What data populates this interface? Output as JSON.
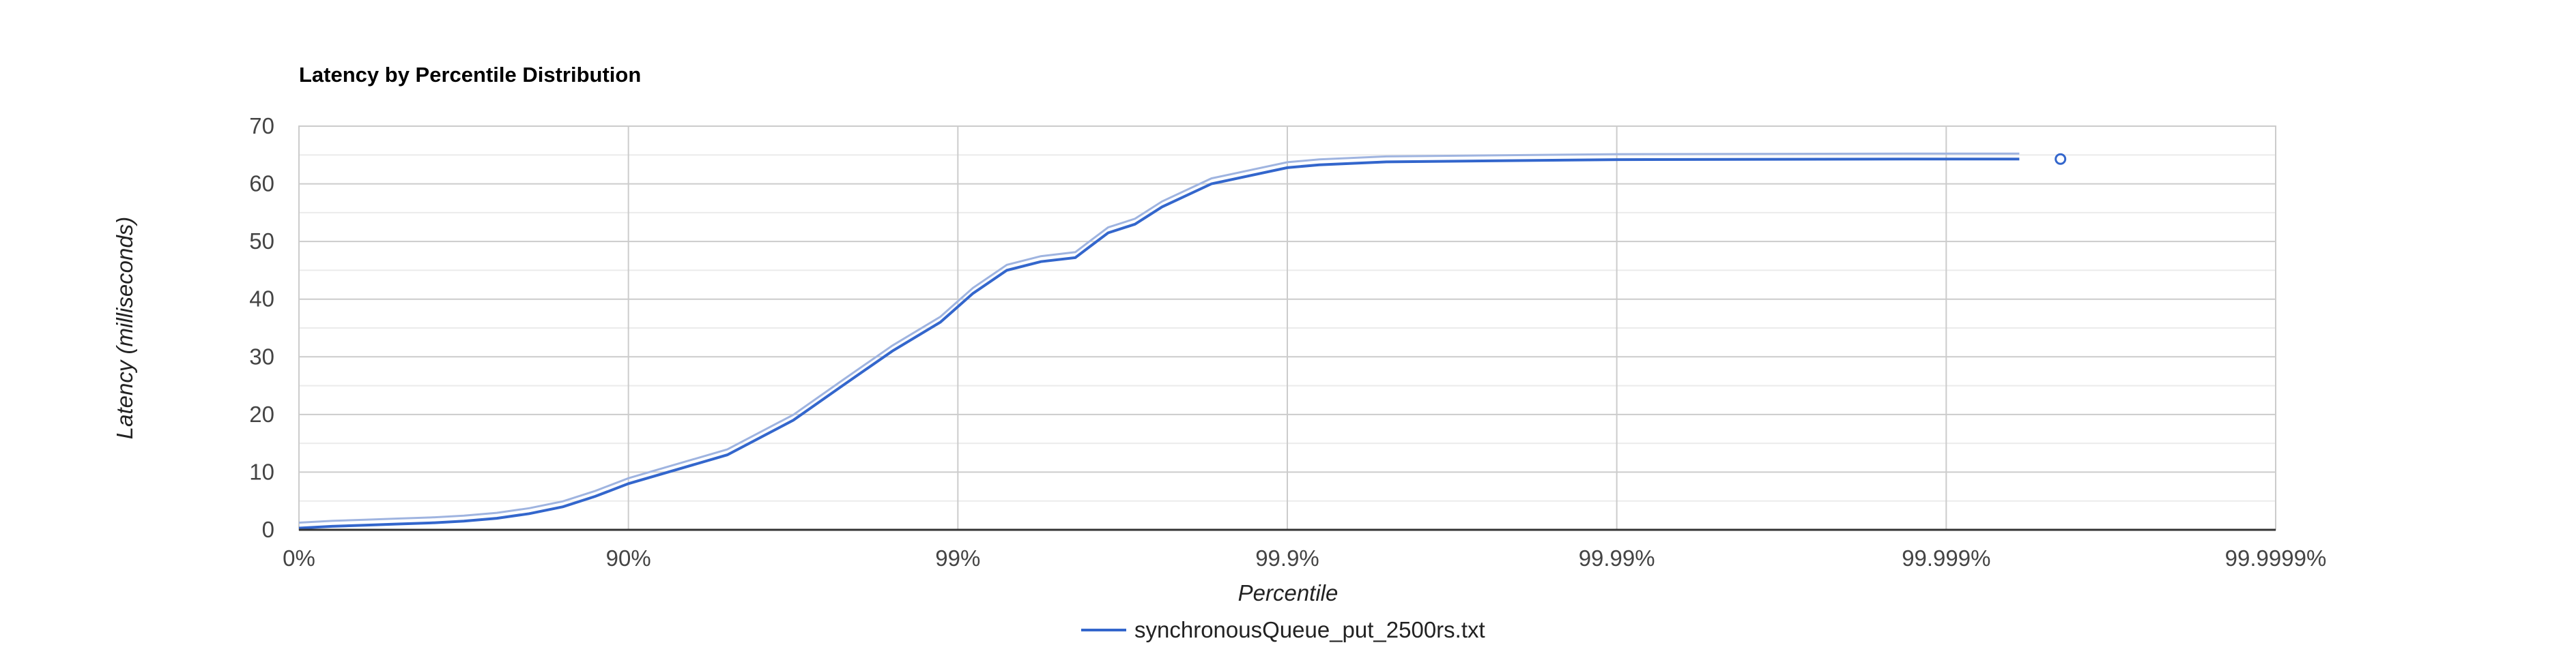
{
  "chart_data": {
    "type": "line",
    "title": "Latency by Percentile Distribution",
    "xlabel": "Percentile",
    "ylabel": "Latency (milliseconds)",
    "x_scale": "log-percentile",
    "x_ticks": [
      "0%",
      "90%",
      "99%",
      "99.9%",
      "99.99%",
      "99.999%",
      "99.9999%"
    ],
    "y_ticks": [
      "0",
      "10",
      "20",
      "30",
      "40",
      "50",
      "60",
      "70"
    ],
    "ylim": [
      0,
      70
    ],
    "grid": true,
    "legend": "bottom",
    "colors": {
      "series": "#3366cc",
      "series_shadow": "#9fb4e0",
      "grid": "#cccccc",
      "minor_grid": "#ebebeb",
      "axis": "#333333"
    },
    "series": [
      {
        "name": "synchronousQueue_put_2500rs.txt",
        "points": [
          {
            "x": "0%",
            "y": 0.3
          },
          {
            "x": "20.6%",
            "y": 0.6
          },
          {
            "x": "36.9%",
            "y": 0.8
          },
          {
            "x": "49.9%",
            "y": 1.0
          },
          {
            "x": "60.2%",
            "y": 1.2
          },
          {
            "x": "68.4%",
            "y": 1.5
          },
          {
            "x": "74.9%",
            "y": 2.0
          },
          {
            "x": "80.0%",
            "y": 2.8
          },
          {
            "x": "84.2%",
            "y": 4.0
          },
          {
            "x": "87.4%",
            "y": 5.8
          },
          {
            "x": "90%",
            "y": 8.0
          },
          {
            "x": "94.99%",
            "y": 13.0
          },
          {
            "x": "96.84%",
            "y": 19.0
          },
          {
            "x": "97.76%",
            "y": 25.0
          },
          {
            "x": "98.42%",
            "y": 31.0
          },
          {
            "x": "98.87%",
            "y": 36.0
          },
          {
            "x": "99.1%",
            "y": 41.0
          },
          {
            "x": "99.29%",
            "y": 45.0
          },
          {
            "x": "99.44%",
            "y": 46.5
          },
          {
            "x": "99.56%",
            "y": 47.2
          },
          {
            "x": "99.60%",
            "y": 49.0
          },
          {
            "x": "99.65%",
            "y": 51.5
          },
          {
            "x": "99.71%",
            "y": 53.0
          },
          {
            "x": "99.76%",
            "y": 56.0
          },
          {
            "x": "99.83%",
            "y": 60.0
          },
          {
            "x": "99.9%",
            "y": 62.8
          },
          {
            "x": "99.92%",
            "y": 63.3
          },
          {
            "x": "99.95%",
            "y": 63.8
          },
          {
            "x": "99.99%",
            "y": 64.2
          },
          {
            "x": "99.999%",
            "y": 64.3
          },
          {
            "x": "99.9994%",
            "y": 64.3
          }
        ],
        "max_point": {
          "x": "99.99955%",
          "y": 64.3
        }
      }
    ]
  }
}
